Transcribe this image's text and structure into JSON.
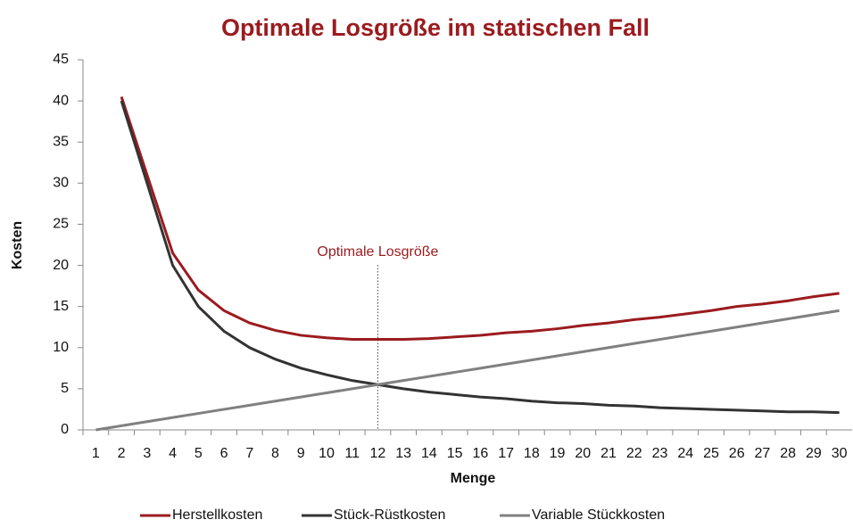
{
  "chart_data": {
    "type": "line",
    "title": "Optimale Losgröße im statischen Fall",
    "x_label": "Menge",
    "y_label": "Kosten",
    "categories": [
      1,
      2,
      3,
      4,
      5,
      6,
      7,
      8,
      9,
      10,
      11,
      12,
      13,
      14,
      15,
      16,
      17,
      18,
      19,
      20,
      21,
      22,
      23,
      24,
      25,
      26,
      27,
      28,
      29,
      30
    ],
    "series": [
      {
        "name": "Herstellkosten",
        "color": "#9b1b1f",
        "values": [
          null,
          40.5,
          31,
          21.5,
          17,
          14.5,
          13,
          12.1,
          11.5,
          11.2,
          11,
          11,
          11,
          11.1,
          11.3,
          11.5,
          11.8,
          12,
          12.3,
          12.7,
          13,
          13.4,
          13.7,
          14.1,
          14.5,
          15,
          15.3,
          15.7,
          16.2,
          16.6
        ]
      },
      {
        "name": "Stück-Rüstkosten",
        "color": "#333333",
        "values": [
          null,
          40,
          30,
          20,
          15,
          12,
          10,
          8.6,
          7.5,
          6.7,
          6,
          5.5,
          5,
          4.6,
          4.3,
          4,
          3.8,
          3.5,
          3.3,
          3.2,
          3,
          2.9,
          2.7,
          2.6,
          2.5,
          2.4,
          2.3,
          2.2,
          2.2,
          2.1
        ]
      },
      {
        "name": "Variable Stückkosten",
        "color": "#808080",
        "values": [
          0,
          0.5,
          1,
          1.5,
          2,
          2.5,
          3,
          3.5,
          4,
          4.5,
          5,
          5.5,
          6,
          6.5,
          7,
          7.5,
          8,
          8.5,
          9,
          9.5,
          10,
          10.5,
          11,
          11.5,
          12,
          12.5,
          13,
          13.5,
          14,
          14.5
        ]
      }
    ],
    "annotations": [
      {
        "text": "Optimale Losgröße",
        "x": 12,
        "color": "#9b1b1f"
      }
    ],
    "ylim": [
      0,
      45
    ],
    "yticks": [
      0,
      5,
      10,
      15,
      20,
      25,
      30,
      35,
      40,
      45
    ],
    "grid": false,
    "legend": "bottom"
  }
}
